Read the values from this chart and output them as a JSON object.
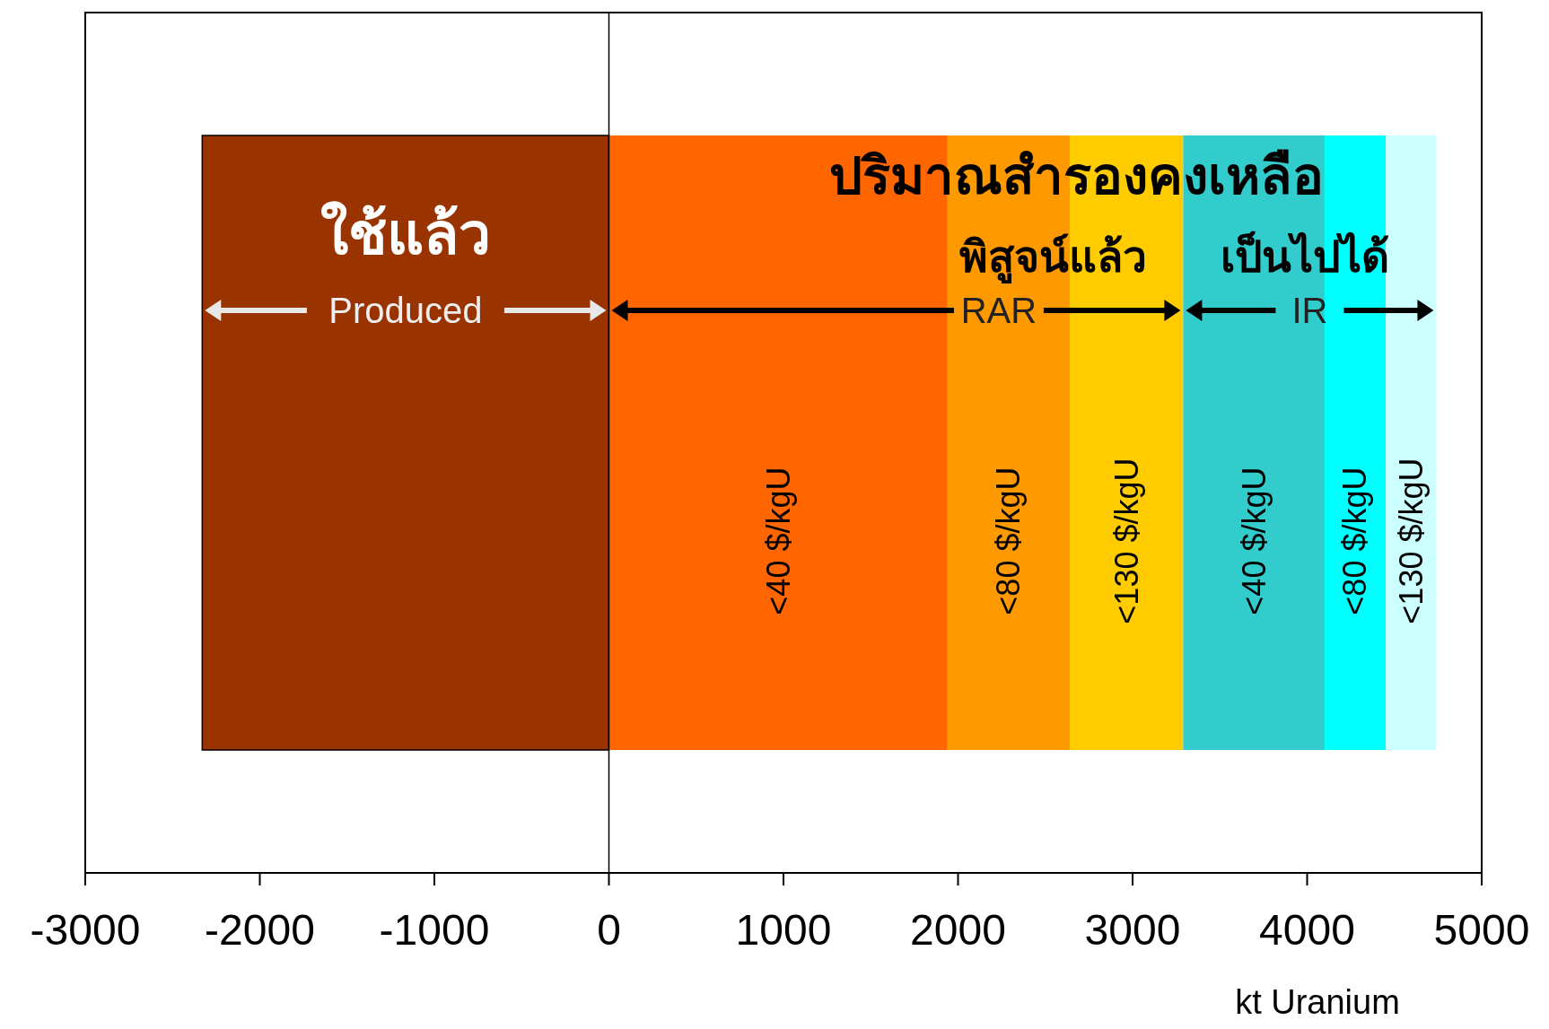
{
  "chart_data": {
    "type": "bar",
    "orientation": "horizontal",
    "stacked": true,
    "categories": [
      null
    ],
    "series": [
      {
        "color": "#993300",
        "values": [
          -2330
        ]
      },
      {
        "name": "<40 $/kgU",
        "color": "#ff6600",
        "values": [
          1940
        ]
      },
      {
        "name": "<80 $/kgU",
        "color": "#ff9900",
        "values": [
          700
        ]
      },
      {
        "name": "<130 $/kgU",
        "color": "#ffcc00",
        "values": [
          650
        ]
      },
      {
        "name": "<40 $/kgU",
        "color": "#33cccc",
        "values": [
          810
        ]
      },
      {
        "name": "<80 $/kgU",
        "color": "#00ffff",
        "values": [
          350
        ]
      },
      {
        "name": "<130 $/kgU",
        "color": "#ccffff",
        "values": [
          290
        ]
      }
    ],
    "xlim": [
      -3000,
      5000
    ],
    "xticks": [
      -3000,
      -2000,
      -1000,
      0,
      1000,
      2000,
      3000,
      4000,
      5000
    ],
    "xlabel": "kt Uranium",
    "ref_lines": [
      {
        "axis": "x",
        "value": 0,
        "color": "#000000"
      }
    ],
    "annotations": [
      "ใช้แล้ว",
      "Produced",
      "ปริมาณสำรองคงเหลือ",
      "พิสูจน์แล้ว",
      "เป็นไปได้",
      "RAR",
      "IR"
    ],
    "grid": false
  }
}
